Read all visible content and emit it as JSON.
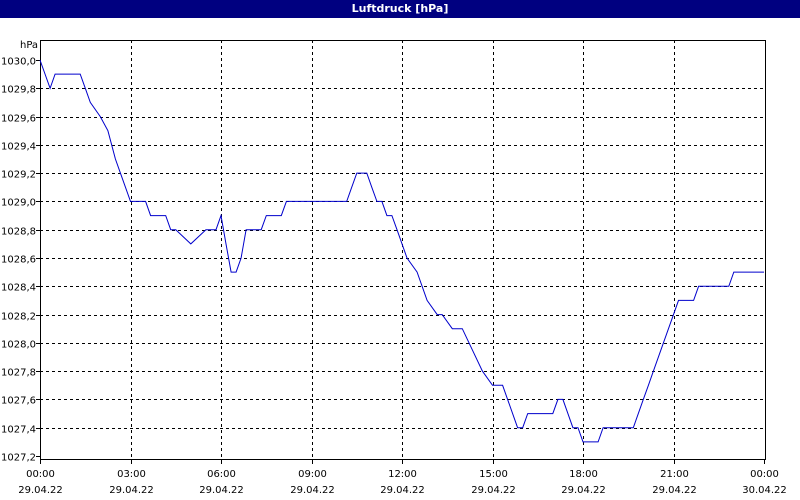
{
  "window": {
    "title": "Luftdruck [hPa]"
  },
  "chart_data": {
    "type": "line",
    "title": "Luftdruck [hPa]",
    "ylabel": "hPa",
    "xlabel": "",
    "ylim": [
      1027.2,
      1030.0
    ],
    "xlim": [
      "2022-04-29 00:00",
      "2022-04-30 00:00"
    ],
    "grid": true,
    "line_color": "#0000cc",
    "y_ticks": [
      "1030,0",
      "1029,8",
      "1029,6",
      "1029,4",
      "1029,2",
      "1029,0",
      "1028,8",
      "1028,6",
      "1028,4",
      "1028,2",
      "1028,0",
      "1027,8",
      "1027,6",
      "1027,4",
      "1027,2"
    ],
    "x_ticks": [
      {
        "time": "00:00",
        "date": "29.04.22"
      },
      {
        "time": "03:00",
        "date": "29.04.22"
      },
      {
        "time": "06:00",
        "date": "29.04.22"
      },
      {
        "time": "09:00",
        "date": "29.04.22"
      },
      {
        "time": "12:00",
        "date": "29.04.22"
      },
      {
        "time": "15:00",
        "date": "29.04.22"
      },
      {
        "time": "18:00",
        "date": "29.04.22"
      },
      {
        "time": "21:00",
        "date": "29.04.22"
      },
      {
        "time": "00:00",
        "date": "30.04.22"
      }
    ],
    "series": [
      {
        "x": [
          "2022-04-29 00:00",
          "2022-04-29 00:20",
          "2022-04-29 00:30",
          "2022-04-29 01:20",
          "2022-04-29 01:30",
          "2022-04-29 01:40",
          "2022-04-29 02:00",
          "2022-04-29 02:15",
          "2022-04-29 02:30",
          "2022-04-29 02:40",
          "2022-04-29 03:00",
          "2022-04-29 03:30",
          "2022-04-29 03:40",
          "2022-04-29 04:10",
          "2022-04-29 04:20",
          "2022-04-29 04:30",
          "2022-04-29 05:00",
          "2022-04-29 05:30",
          "2022-04-29 05:50",
          "2022-04-29 06:00",
          "2022-04-29 06:10",
          "2022-04-29 06:20",
          "2022-04-29 06:30",
          "2022-04-29 06:40",
          "2022-04-29 06:50",
          "2022-04-29 07:20",
          "2022-04-29 07:30",
          "2022-04-29 08:00",
          "2022-04-29 08:10",
          "2022-04-29 09:10",
          "2022-04-29 09:40",
          "2022-04-29 10:10",
          "2022-04-29 10:20",
          "2022-04-29 10:30",
          "2022-04-29 10:50",
          "2022-04-29 11:00",
          "2022-04-29 11:10",
          "2022-04-29 11:20",
          "2022-04-29 11:30",
          "2022-04-29 11:40",
          "2022-04-29 11:50",
          "2022-04-29 12:10",
          "2022-04-29 12:30",
          "2022-04-29 12:50",
          "2022-04-29 13:10",
          "2022-04-29 13:20",
          "2022-04-29 13:40",
          "2022-04-29 14:00",
          "2022-04-29 14:40",
          "2022-04-29 15:00",
          "2022-04-29 15:20",
          "2022-04-29 15:30",
          "2022-04-29 15:50",
          "2022-04-29 16:00",
          "2022-04-29 16:10",
          "2022-04-29 16:20",
          "2022-04-29 16:30",
          "2022-04-29 17:00",
          "2022-04-29 17:10",
          "2022-04-29 17:20",
          "2022-04-29 17:30",
          "2022-04-29 17:40",
          "2022-04-29 17:50",
          "2022-04-29 18:00",
          "2022-04-29 18:30",
          "2022-04-29 18:40",
          "2022-04-29 19:40",
          "2022-04-29 19:50",
          "2022-04-29 20:00",
          "2022-04-29 20:10",
          "2022-04-29 20:20",
          "2022-04-29 20:40",
          "2022-04-29 21:00",
          "2022-04-29 21:10",
          "2022-04-29 21:20",
          "2022-04-29 21:40",
          "2022-04-29 21:50",
          "2022-04-29 22:50",
          "2022-04-29 23:00",
          "2022-04-29 23:30",
          "2022-04-29 23:50",
          "2022-04-30 00:00"
        ],
        "y": [
          1030.0,
          1029.8,
          1029.9,
          1029.9,
          1029.8,
          1029.7,
          1029.6,
          1029.5,
          1029.3,
          1029.2,
          1029.0,
          1029.0,
          1028.9,
          1028.9,
          1028.8,
          1028.8,
          1028.7,
          1028.8,
          1028.8,
          1028.9,
          1028.7,
          1028.5,
          1028.5,
          1028.6,
          1028.8,
          1028.8,
          1028.9,
          1028.9,
          1029.0,
          1029.0,
          1029.0,
          1029.0,
          1029.1,
          1029.2,
          1029.2,
          1029.1,
          1029.0,
          1029.0,
          1028.9,
          1028.9,
          1028.8,
          1028.6,
          1028.5,
          1028.3,
          1028.2,
          1028.2,
          1028.1,
          1028.1,
          1027.8,
          1027.7,
          1027.7,
          1027.6,
          1027.4,
          1027.4,
          1027.5,
          1027.5,
          1027.5,
          1027.5,
          1027.6,
          1027.6,
          1027.5,
          1027.4,
          1027.4,
          1027.3,
          1027.3,
          1027.4,
          1027.4,
          1027.5,
          1027.6,
          1027.7,
          1027.8,
          1028.0,
          1028.2,
          1028.3,
          1028.3,
          1028.3,
          1028.4,
          1028.4,
          1028.5,
          1028.5,
          1028.5,
          1028.5
        ]
      }
    ]
  }
}
